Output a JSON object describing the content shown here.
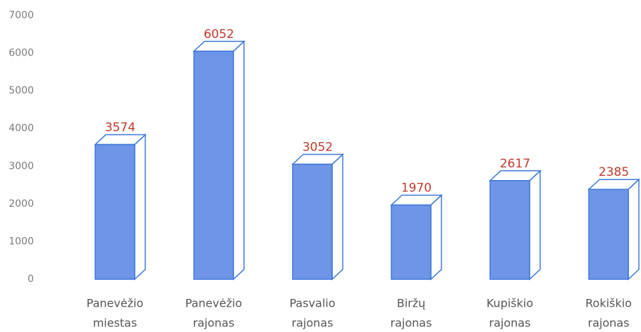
{
  "chart_data": {
    "type": "bar3d",
    "categories": [
      [
        "Panevėžio",
        "miestas"
      ],
      [
        "Panevėžio",
        "rajonas"
      ],
      [
        "Pasvalio",
        "rajonas"
      ],
      [
        "Biržų",
        "rajonas"
      ],
      [
        "Kupiškio",
        "rajonas"
      ],
      [
        "Rokiškio",
        "rajonas"
      ]
    ],
    "values": [
      3574,
      6052,
      3052,
      1970,
      2617,
      2385
    ],
    "color": "#6f95e8",
    "edge_color": "#3d78d8",
    "label_color": "#c0392b",
    "ylim": [
      0,
      7000
    ],
    "yticks": [
      0,
      1000,
      2000,
      3000,
      4000,
      5000,
      6000,
      7000
    ],
    "grid": false
  }
}
